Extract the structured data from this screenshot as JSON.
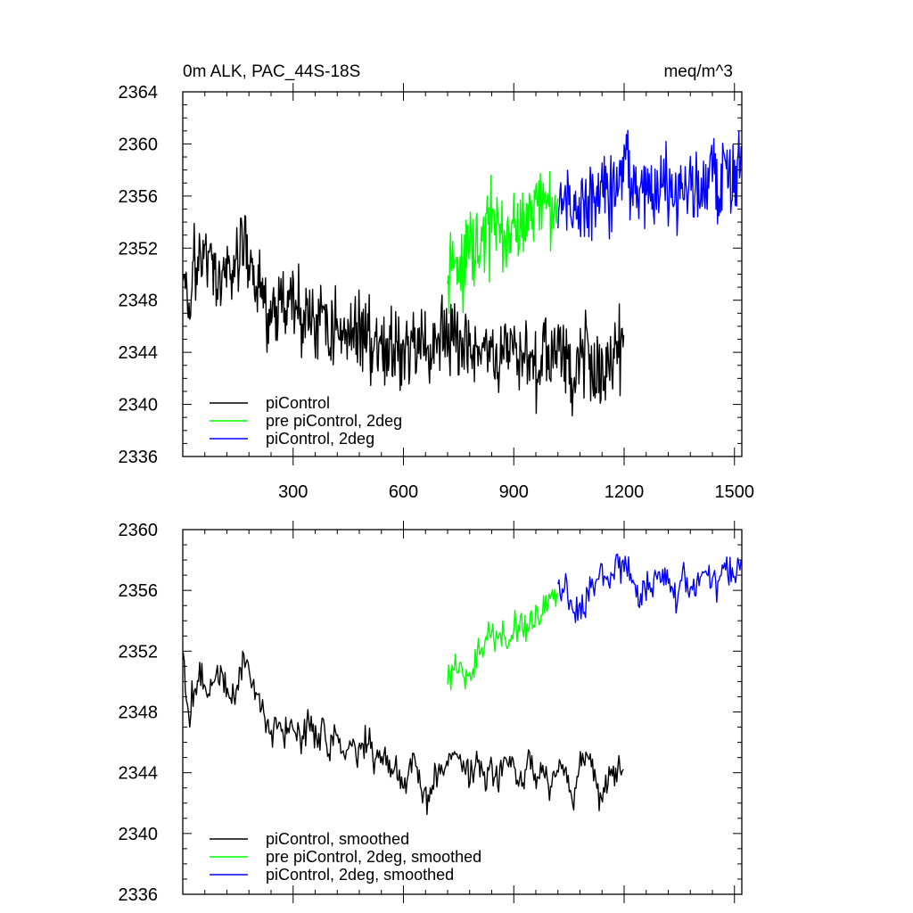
{
  "chart_data": [
    {
      "type": "line",
      "title_left": "0m ALK, PAC_44S-18S",
      "title_right": "meq/m^3",
      "xlim": [
        0,
        1520
      ],
      "ylim": [
        2336,
        2364
      ],
      "xticks": [
        300,
        600,
        900,
        1200,
        1500
      ],
      "yticks": [
        2336,
        2340,
        2344,
        2348,
        2352,
        2356,
        2360,
        2364
      ],
      "x_tick_labels_visible": true,
      "legend_position": "bottom-left",
      "series": [
        {
          "name": "piControl",
          "color": "#000000",
          "x_start": 1,
          "x_end": 1200,
          "x": [
            1,
            15,
            30,
            50,
            70,
            90,
            110,
            130,
            150,
            165,
            180,
            200,
            220,
            240,
            260,
            280,
            300,
            320,
            340,
            360,
            380,
            400,
            420,
            440,
            460,
            480,
            500,
            520,
            540,
            560,
            580,
            600,
            620,
            640,
            660,
            680,
            700,
            720,
            740,
            760,
            780,
            800,
            820,
            840,
            860,
            880,
            900,
            920,
            940,
            960,
            980,
            1000,
            1020,
            1040,
            1060,
            1080,
            1100,
            1120,
            1140,
            1160,
            1180,
            1200
          ],
          "y": [
            2350.5,
            2346,
            2351.5,
            2350,
            2352.5,
            2348.5,
            2350.5,
            2349.5,
            2351,
            2353,
            2350.5,
            2349,
            2348,
            2346.5,
            2348,
            2347.5,
            2348,
            2346.5,
            2347.5,
            2346,
            2347,
            2345.5,
            2346.5,
            2345,
            2346,
            2345.5,
            2346,
            2344.5,
            2345,
            2344,
            2344.5,
            2343.5,
            2345,
            2344,
            2343,
            2344.5,
            2345.5,
            2345,
            2345,
            2344,
            2344,
            2344.5,
            2343.5,
            2344,
            2343.5,
            2344,
            2344.5,
            2343,
            2344.5,
            2343.5,
            2344,
            2343,
            2344.5,
            2343.5,
            2342,
            2344,
            2344.5,
            2343,
            2342.5,
            2343.5,
            2344,
            2344
          ]
        },
        {
          "name": "pre piControl, 2deg",
          "color": "#00ff00",
          "x_start": 720,
          "x_end": 1020,
          "x": [
            720,
            740,
            760,
            780,
            800,
            820,
            840,
            860,
            880,
            900,
            920,
            940,
            960,
            980,
            1000,
            1020
          ],
          "y": [
            2349.5,
            2351,
            2350,
            2351.5,
            2352,
            2353,
            2354,
            2353,
            2352.5,
            2353.5,
            2354,
            2354.5,
            2355,
            2355.5,
            2356,
            2355.5
          ]
        },
        {
          "name": "piControl, 2deg",
          "color": "#0000ff",
          "x_start": 1020,
          "x_end": 1520,
          "x": [
            1020,
            1040,
            1060,
            1080,
            1100,
            1120,
            1140,
            1160,
            1180,
            1200,
            1220,
            1240,
            1260,
            1280,
            1300,
            1320,
            1340,
            1360,
            1380,
            1400,
            1420,
            1440,
            1460,
            1480,
            1500,
            1520
          ],
          "y": [
            2355.5,
            2356,
            2355,
            2354.5,
            2355.5,
            2356,
            2356.5,
            2356,
            2357,
            2357.5,
            2357,
            2356,
            2356.5,
            2356,
            2357,
            2356.5,
            2356,
            2357.5,
            2356,
            2356.5,
            2357,
            2357.5,
            2357,
            2358,
            2357,
            2358.5
          ]
        }
      ],
      "noise_amplitude": 2.6
    },
    {
      "type": "line",
      "xlim": [
        0,
        1520
      ],
      "ylim": [
        2336,
        2360
      ],
      "xticks": [
        300,
        600,
        900,
        1200,
        1500
      ],
      "yticks": [
        2336,
        2340,
        2344,
        2348,
        2352,
        2356,
        2360
      ],
      "x_tick_labels_visible": false,
      "legend_position": "bottom-left",
      "series": [
        {
          "name": "piControl, smoothed",
          "color": "#000000",
          "x": [
            1,
            15,
            30,
            50,
            70,
            90,
            110,
            130,
            150,
            165,
            180,
            200,
            220,
            240,
            260,
            280,
            300,
            320,
            340,
            360,
            380,
            400,
            420,
            440,
            460,
            480,
            500,
            520,
            540,
            560,
            580,
            600,
            620,
            640,
            660,
            680,
            700,
            720,
            740,
            760,
            780,
            800,
            820,
            840,
            860,
            880,
            900,
            920,
            940,
            960,
            980,
            1000,
            1020,
            1040,
            1060,
            1080,
            1100,
            1120,
            1140,
            1160,
            1180,
            1200
          ],
          "y": [
            2351.5,
            2347.5,
            2349.5,
            2350.5,
            2349,
            2351,
            2350,
            2348.5,
            2349.5,
            2351.5,
            2350.5,
            2349,
            2348,
            2346.5,
            2347.5,
            2346.5,
            2347,
            2346,
            2347.5,
            2346,
            2347,
            2345.5,
            2346.5,
            2345,
            2346,
            2345,
            2346.5,
            2344.5,
            2345,
            2344,
            2344.5,
            2342.5,
            2345,
            2344,
            2342,
            2343.5,
            2344.5,
            2345,
            2345.5,
            2344.5,
            2344,
            2345,
            2343.5,
            2344.5,
            2343.5,
            2345,
            2344.5,
            2343,
            2345.5,
            2343.5,
            2344.5,
            2343,
            2344.5,
            2344,
            2342,
            2344.5,
            2345.5,
            2343.5,
            2342,
            2343.5,
            2344,
            2344
          ]
        },
        {
          "name": "pre piControl, 2deg, smoothed",
          "color": "#00ff00",
          "x": [
            720,
            740,
            760,
            780,
            800,
            820,
            840,
            860,
            880,
            900,
            920,
            940,
            960,
            980,
            1000,
            1020
          ],
          "y": [
            2350,
            2351,
            2350.5,
            2350,
            2351.5,
            2352.5,
            2353.5,
            2353,
            2352.5,
            2353.5,
            2354,
            2353.5,
            2354.5,
            2355,
            2355.5,
            2355.5
          ]
        },
        {
          "name": "piControl, 2deg, smoothed",
          "color": "#0000ff",
          "x": [
            1020,
            1040,
            1060,
            1080,
            1100,
            1120,
            1140,
            1160,
            1180,
            1200,
            1220,
            1240,
            1260,
            1280,
            1300,
            1320,
            1340,
            1360,
            1380,
            1400,
            1420,
            1440,
            1460,
            1480,
            1500,
            1520
          ],
          "y": [
            2355.5,
            2356.5,
            2355,
            2354.5,
            2355.5,
            2356.5,
            2357,
            2356.5,
            2357.5,
            2358,
            2357,
            2355.5,
            2356.5,
            2356,
            2357,
            2356.5,
            2355.5,
            2357,
            2355.5,
            2356.5,
            2357.5,
            2357,
            2356.5,
            2358,
            2357,
            2358.5
          ]
        }
      ],
      "noise_amplitude": 0.9
    }
  ]
}
